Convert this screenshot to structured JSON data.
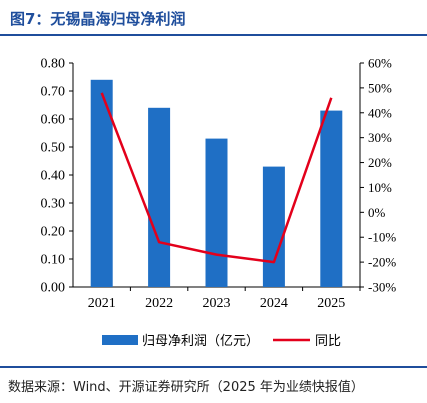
{
  "figure_title": "图7：无锡晶海归母净利润",
  "source": "数据来源：Wind、开源证券研究所（2025 年为业绩快报值）",
  "colors": {
    "bar": "#1f6fc5",
    "line": "#e3001b",
    "title": "#1f4e9c"
  },
  "chart_data": {
    "type": "bar",
    "categories": [
      "2021",
      "2022",
      "2023",
      "2024",
      "2025"
    ],
    "series": [
      {
        "name": "归母净利润（亿元）",
        "type": "bar",
        "axis": "left",
        "values": [
          0.74,
          0.64,
          0.53,
          0.43,
          0.63
        ]
      },
      {
        "name": "同比",
        "type": "line",
        "axis": "right",
        "values": [
          48,
          -12,
          -17,
          -20,
          46
        ]
      }
    ],
    "left_axis": {
      "ylim": [
        0,
        0.8
      ],
      "ticks": [
        "0.00",
        "0.10",
        "0.20",
        "0.30",
        "0.40",
        "0.50",
        "0.60",
        "0.70",
        "0.80"
      ]
    },
    "right_axis": {
      "ylim": [
        -30,
        60
      ],
      "ticks": [
        "-30%",
        "-20%",
        "-10%",
        "0%",
        "10%",
        "20%",
        "30%",
        "40%",
        "50%",
        "60%"
      ]
    },
    "legend": {
      "placement": "bottom",
      "items": [
        "归母净利润（亿元）",
        "同比"
      ]
    },
    "grid": false
  }
}
